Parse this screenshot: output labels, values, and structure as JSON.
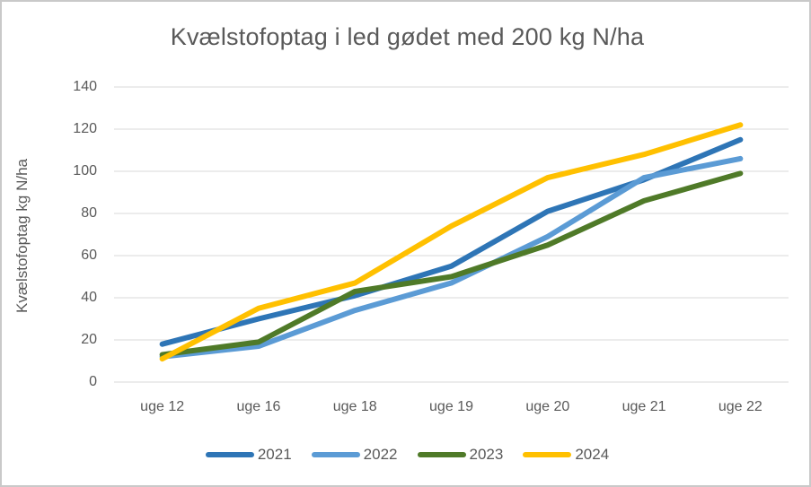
{
  "chart_data": {
    "type": "line",
    "title": "Kvælstofoptag i led gødet med 200 kg N/ha",
    "ylabel": "Kvælstofoptag kg N/ha",
    "xlabel": "",
    "categories": [
      "uge 12",
      "uge 16",
      "uge 18",
      "uge 19",
      "uge 20",
      "uge 21",
      "uge 22"
    ],
    "series": [
      {
        "name": "2021",
        "color": "#2E75B6",
        "values": [
          18,
          30,
          41,
          55,
          81,
          96,
          115
        ]
      },
      {
        "name": "2022",
        "color": "#5B9BD5",
        "values": [
          12,
          17,
          34,
          47,
          69,
          97,
          106
        ]
      },
      {
        "name": "2023",
        "color": "#4F7A28",
        "values": [
          13,
          19,
          43,
          50,
          65,
          86,
          99
        ]
      },
      {
        "name": "2024",
        "color": "#FFC000",
        "values": [
          11,
          35,
          47,
          74,
          97,
          108,
          122
        ]
      }
    ],
    "ylim": [
      0,
      140
    ],
    "ytick_step": 20,
    "grid": "horizontal-only",
    "legend_position": "bottom"
  },
  "styles": {
    "text_color": "#595959",
    "grid_color": "#D9D9D9",
    "frame_border_color": "#C9C9C9",
    "background": "#FFFFFF",
    "line_width": 6
  }
}
